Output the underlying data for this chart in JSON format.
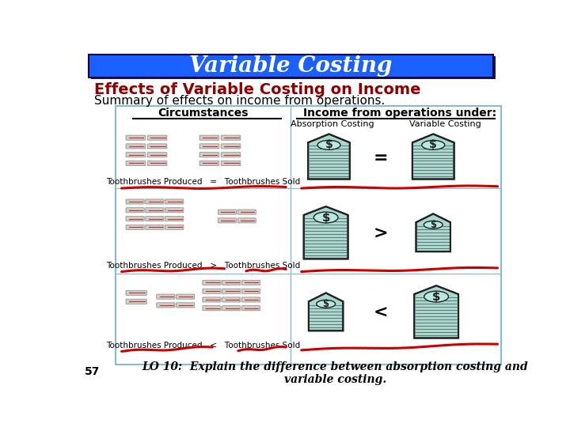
{
  "title": "Variable Costing",
  "title_bg": "#1a5fff",
  "title_color": "white",
  "title_fontsize": 20,
  "heading": "Effects of Variable Costing on Income",
  "subheading": "Summary of effects on income from operations.",
  "heading_fontsize": 14,
  "heading_color": "#8b0000",
  "subheading_fontsize": 11,
  "page_num": "57",
  "footer_text": "LO 10:  Explain the difference between absorption costing and\nvariable costing.",
  "footer_fontsize": 10,
  "bg_color": "white",
  "table_border_color": "#88bbcc",
  "circumstances_header": "Circumstances",
  "income_header": "Income from operations under:",
  "absorption_label": "Absorption Costing",
  "variable_label": "Variable Costing",
  "row1_label": "Toothbrushes Produced  =  Toothbrushes Sold",
  "row2_label": "Toothbrushes Produced  >  Toothbrushes Sold",
  "row3_label": "Toothbrushes Produced  <  Toothbrushes Sold",
  "row1_symbol": "=",
  "row2_symbol": ">",
  "row3_symbol": "<",
  "red_line_color": "#cc0000",
  "stack_fill": "#a8d8d0",
  "stack_edge": "#222222",
  "stack_hatch_color": "#333333",
  "coin_fill": "#b8e8e0"
}
